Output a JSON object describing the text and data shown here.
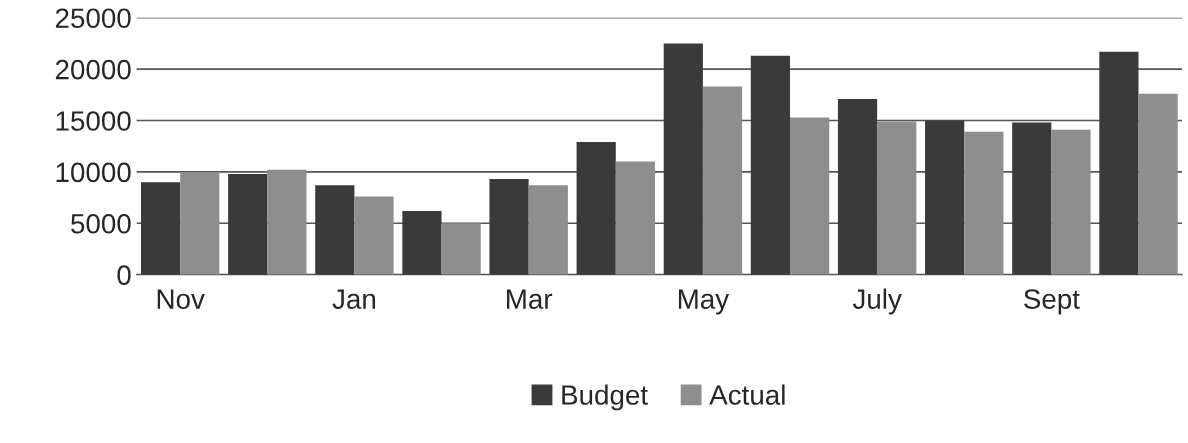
{
  "chart_data": {
    "type": "bar",
    "categories": [
      "Nov",
      null,
      "Jan",
      null,
      "Mar",
      null,
      "May",
      null,
      "July",
      null,
      "Sept",
      null
    ],
    "series": [
      {
        "name": "Budget",
        "color": "#3a3a3a",
        "values": [
          9000,
          9800,
          8700,
          6200,
          9300,
          12900,
          22500,
          21300,
          17100,
          15000,
          14800,
          21700
        ]
      },
      {
        "name": "Actual",
        "color": "#8e8e8e",
        "values": [
          10000,
          10200,
          7600,
          5000,
          8700,
          11000,
          18300,
          15300,
          14900,
          13900,
          14100,
          17600
        ]
      }
    ],
    "ylim": [
      0,
      25000
    ],
    "yticks": [
      0,
      5000,
      10000,
      15000,
      20000,
      25000
    ],
    "grid": "y",
    "legend": "bottom"
  }
}
